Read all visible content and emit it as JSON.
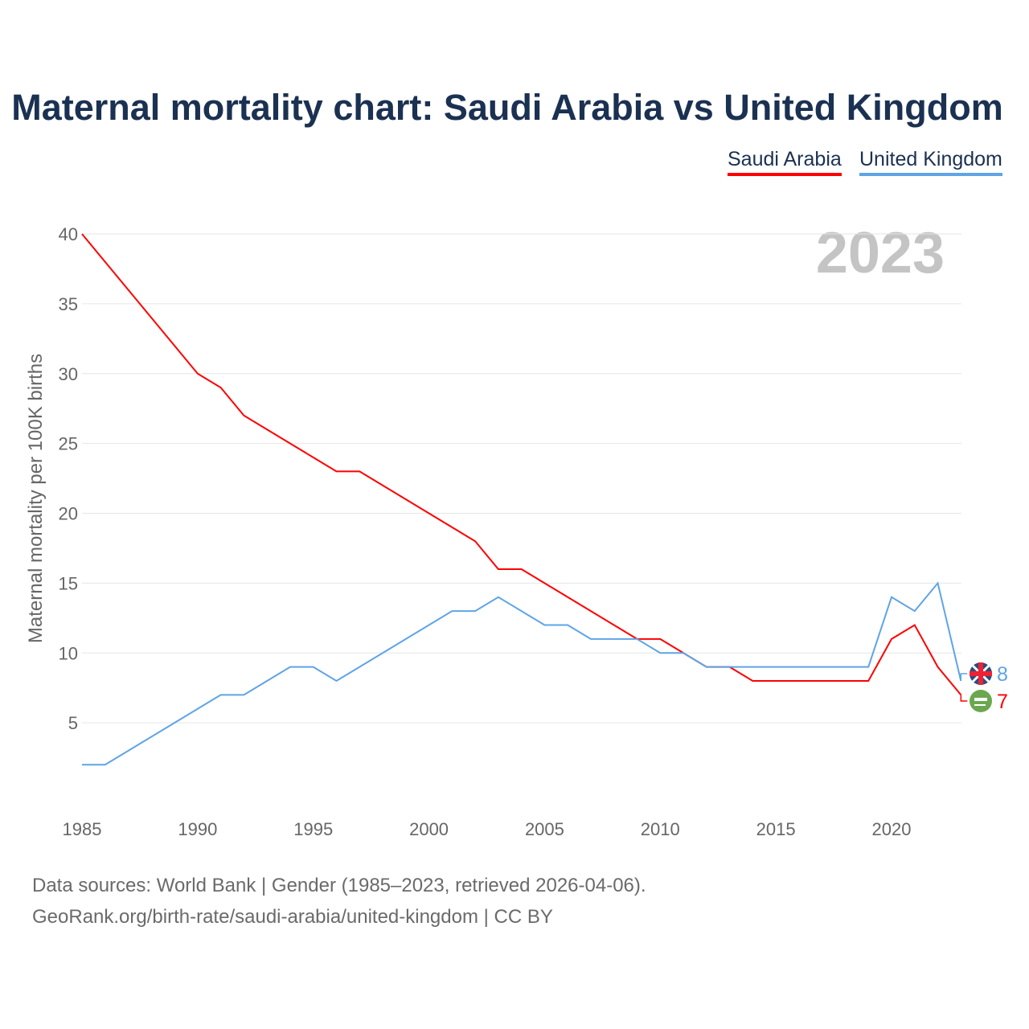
{
  "chart_data": {
    "type": "line",
    "title": "Maternal mortality chart: Saudi Arabia vs United Kingdom",
    "ylabel": "Maternal mortality per 100K births",
    "xlabel": "",
    "year_label": "2023",
    "ylim": [
      0,
      40
    ],
    "xlim": [
      1985,
      2023
    ],
    "yticks": [
      5,
      10,
      15,
      20,
      25,
      30,
      35,
      40
    ],
    "xticks": [
      1985,
      1990,
      1995,
      2000,
      2005,
      2010,
      2015,
      2020
    ],
    "x": [
      1985,
      1986,
      1987,
      1988,
      1989,
      1990,
      1991,
      1992,
      1993,
      1994,
      1995,
      1996,
      1997,
      1998,
      1999,
      2000,
      2001,
      2002,
      2003,
      2004,
      2005,
      2006,
      2007,
      2008,
      2009,
      2010,
      2011,
      2012,
      2013,
      2014,
      2015,
      2016,
      2017,
      2018,
      2019,
      2020,
      2021,
      2022,
      2023
    ],
    "series": [
      {
        "name": "Saudi Arabia",
        "color": "#ff0000",
        "end_label": "7",
        "values": [
          40,
          38,
          36,
          34,
          32,
          30,
          29,
          27,
          26,
          25,
          24,
          23,
          23,
          22,
          21,
          20,
          19,
          18,
          16,
          16,
          15,
          14,
          13,
          12,
          11,
          11,
          10,
          9,
          9,
          8,
          8,
          8,
          8,
          8,
          8,
          11,
          12,
          9,
          7
        ]
      },
      {
        "name": "United Kingdom",
        "color": "#5fa4e6",
        "end_label": "8",
        "values": [
          2,
          2,
          3,
          4,
          5,
          6,
          7,
          7,
          8,
          9,
          9,
          8,
          9,
          10,
          11,
          12,
          13,
          13,
          14,
          13,
          12,
          12,
          11,
          11,
          11,
          10,
          10,
          9,
          9,
          9,
          9,
          9,
          9,
          9,
          9,
          14,
          13,
          15,
          8
        ]
      }
    ],
    "legend": "top-right"
  },
  "footer": {
    "line1": "Data sources: World Bank | Gender (1985–2023, retrieved 2026-04-06).",
    "line2": "GeoRank.org/birth-rate/saudi-arabia/united-kingdom | CC BY"
  }
}
